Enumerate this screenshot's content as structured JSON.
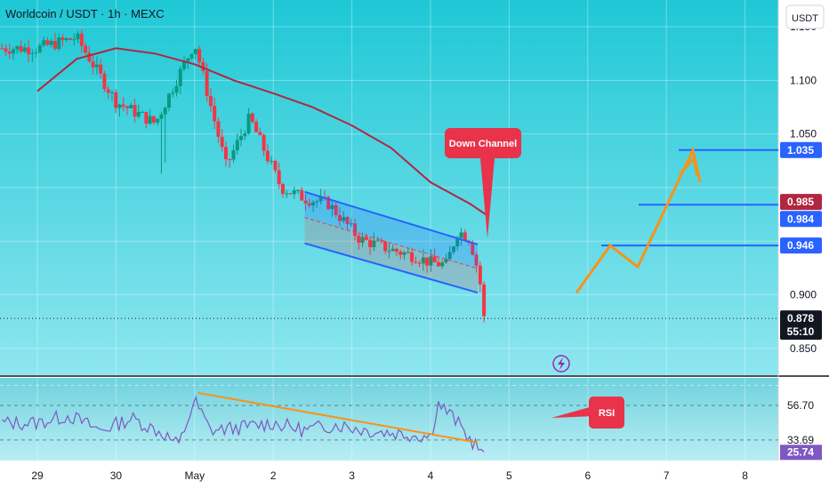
{
  "header": {
    "symbol_line": "Worldcoin / USDT · 1h · MEXC",
    "currency_button": "USDT"
  },
  "colors": {
    "price_bg_top": "#1ec8d6",
    "price_bg_bottom": "#8ee6ef",
    "rsi_bg": "#7fdbe6",
    "up_candle": "#089981",
    "down_candle": "#f23645",
    "ma_line": "#b2263f",
    "channel": "#2962ff",
    "projection": "#f7931a",
    "rsi_line": "#7e57c2",
    "callout": "#e8334a"
  },
  "annotations": {
    "down_channel_label": "Down Channel",
    "rsi_label": "RSI"
  },
  "price_badges": {
    "target_high": "1.035",
    "ma_value": "0.985",
    "target_mid": "0.984",
    "target_low": "0.946",
    "last_price": "0.878",
    "countdown": "55:10"
  },
  "rsi_badges": {
    "upper": "56.70",
    "lower": "33.69",
    "current": "25.74"
  },
  "chart_data": {
    "type": "line",
    "title": "Worldcoin / USDT · 1h · MEXC",
    "y_axis_ticks": [
      "1.150",
      "1.100",
      "1.050",
      "0.900",
      "0.850"
    ],
    "x_axis_ticks": [
      "29",
      "30",
      "May",
      "2",
      "3",
      "4",
      "5",
      "6",
      "7",
      "8"
    ],
    "ylim": [
      0.825,
      1.175
    ],
    "grid": true,
    "price_path_x": [
      0,
      0.5,
      1,
      1.5,
      2,
      2.4,
      2.7,
      3.1,
      3.4,
      3.7,
      4.1,
      4.5,
      4.8,
      5.0,
      5.2,
      5.35,
      5.5,
      5.62,
      5.68
    ],
    "price_path_close": [
      1.13,
      1.14,
      1.08,
      1.06,
      1.135,
      1.02,
      1.065,
      1.0,
      0.99,
      0.985,
      0.952,
      0.942,
      0.936,
      0.93,
      0.928,
      0.96,
      0.952,
      0.918,
      0.878
    ],
    "ma_x": [
      0,
      0.5,
      1,
      1.5,
      2,
      2.5,
      3,
      3.5,
      4,
      4.5,
      5,
      5.5,
      5.7
    ],
    "ma_values": [
      1.09,
      1.12,
      1.13,
      1.125,
      1.115,
      1.1,
      1.088,
      1.075,
      1.058,
      1.037,
      1.005,
      0.985,
      0.975
    ],
    "channel_upper": {
      "x": [
        3.4,
        5.6
      ],
      "y": [
        0.996,
        0.947
      ]
    },
    "channel_lower": {
      "x": [
        3.4,
        5.6
      ],
      "y": [
        0.948,
        0.902
      ]
    },
    "projection_path": {
      "x": [
        5.95,
        6.35,
        6.7,
        7.2,
        7.45
      ],
      "y": [
        0.902,
        0.946,
        0.926,
        1.035,
        1.005
      ]
    },
    "target_levels": [
      1.035,
      0.984,
      0.946
    ],
    "rsi": {
      "ticks": [
        "56.70",
        "33.69",
        "25.74"
      ],
      "ylim": [
        20,
        75
      ],
      "x": [
        0,
        0.4,
        0.8,
        1.2,
        1.6,
        1.8,
        2.0,
        2.2,
        2.6,
        3.0,
        3.4,
        3.8,
        4.2,
        4.6,
        5.0,
        5.1,
        5.3,
        5.5,
        5.68
      ],
      "values": [
        45,
        50,
        40,
        48,
        38,
        30,
        60,
        40,
        42,
        45,
        40,
        44,
        40,
        38,
        36,
        58,
        48,
        34,
        25.74
      ],
      "trendline": {
        "x": [
          2.0,
          5.6
        ],
        "y": [
          65,
          32
        ]
      }
    }
  }
}
